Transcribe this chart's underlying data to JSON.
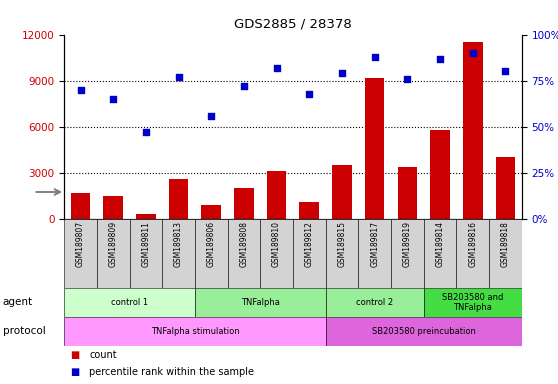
{
  "title": "GDS2885 / 28378",
  "samples": [
    "GSM189807",
    "GSM189809",
    "GSM189811",
    "GSM189813",
    "GSM189806",
    "GSM189808",
    "GSM189810",
    "GSM189812",
    "GSM189815",
    "GSM189817",
    "GSM189819",
    "GSM189814",
    "GSM189816",
    "GSM189818"
  ],
  "counts": [
    1700,
    1500,
    300,
    2600,
    900,
    2000,
    3100,
    1100,
    3500,
    9200,
    3400,
    5800,
    11500,
    4000
  ],
  "percentiles": [
    70,
    65,
    47,
    77,
    56,
    72,
    82,
    68,
    79,
    88,
    76,
    87,
    90,
    80
  ],
  "bar_color": "#cc0000",
  "dot_color": "#0000cc",
  "ylim_left": [
    0,
    12000
  ],
  "ylim_right": [
    0,
    100
  ],
  "yticks_left": [
    0,
    3000,
    6000,
    9000,
    12000
  ],
  "yticks_right": [
    0,
    25,
    50,
    75,
    100
  ],
  "ytick_labels_right": [
    "0%",
    "25%",
    "50%",
    "75%",
    "100%"
  ],
  "agent_groups": [
    {
      "label": "control 1",
      "start": 0,
      "end": 3,
      "color": "#ccffcc"
    },
    {
      "label": "TNFalpha",
      "start": 4,
      "end": 7,
      "color": "#99ee99"
    },
    {
      "label": "control 2",
      "start": 8,
      "end": 10,
      "color": "#99ee99"
    },
    {
      "label": "SB203580 and\nTNFalpha",
      "start": 11,
      "end": 13,
      "color": "#44dd44"
    }
  ],
  "protocol_groups": [
    {
      "label": "TNFalpha stimulation",
      "start": 0,
      "end": 7,
      "color": "#ff99ff"
    },
    {
      "label": "SB203580 preincubation",
      "start": 8,
      "end": 13,
      "color": "#dd66dd"
    }
  ],
  "agent_label": "agent",
  "protocol_label": "protocol",
  "legend_count_label": "count",
  "legend_pct_label": "percentile rank within the sample",
  "sample_bg_color": "#d3d3d3",
  "grid_color": "black",
  "grid_linestyle": "dotted",
  "grid_linewidth": 0.8,
  "bar_width": 0.6
}
